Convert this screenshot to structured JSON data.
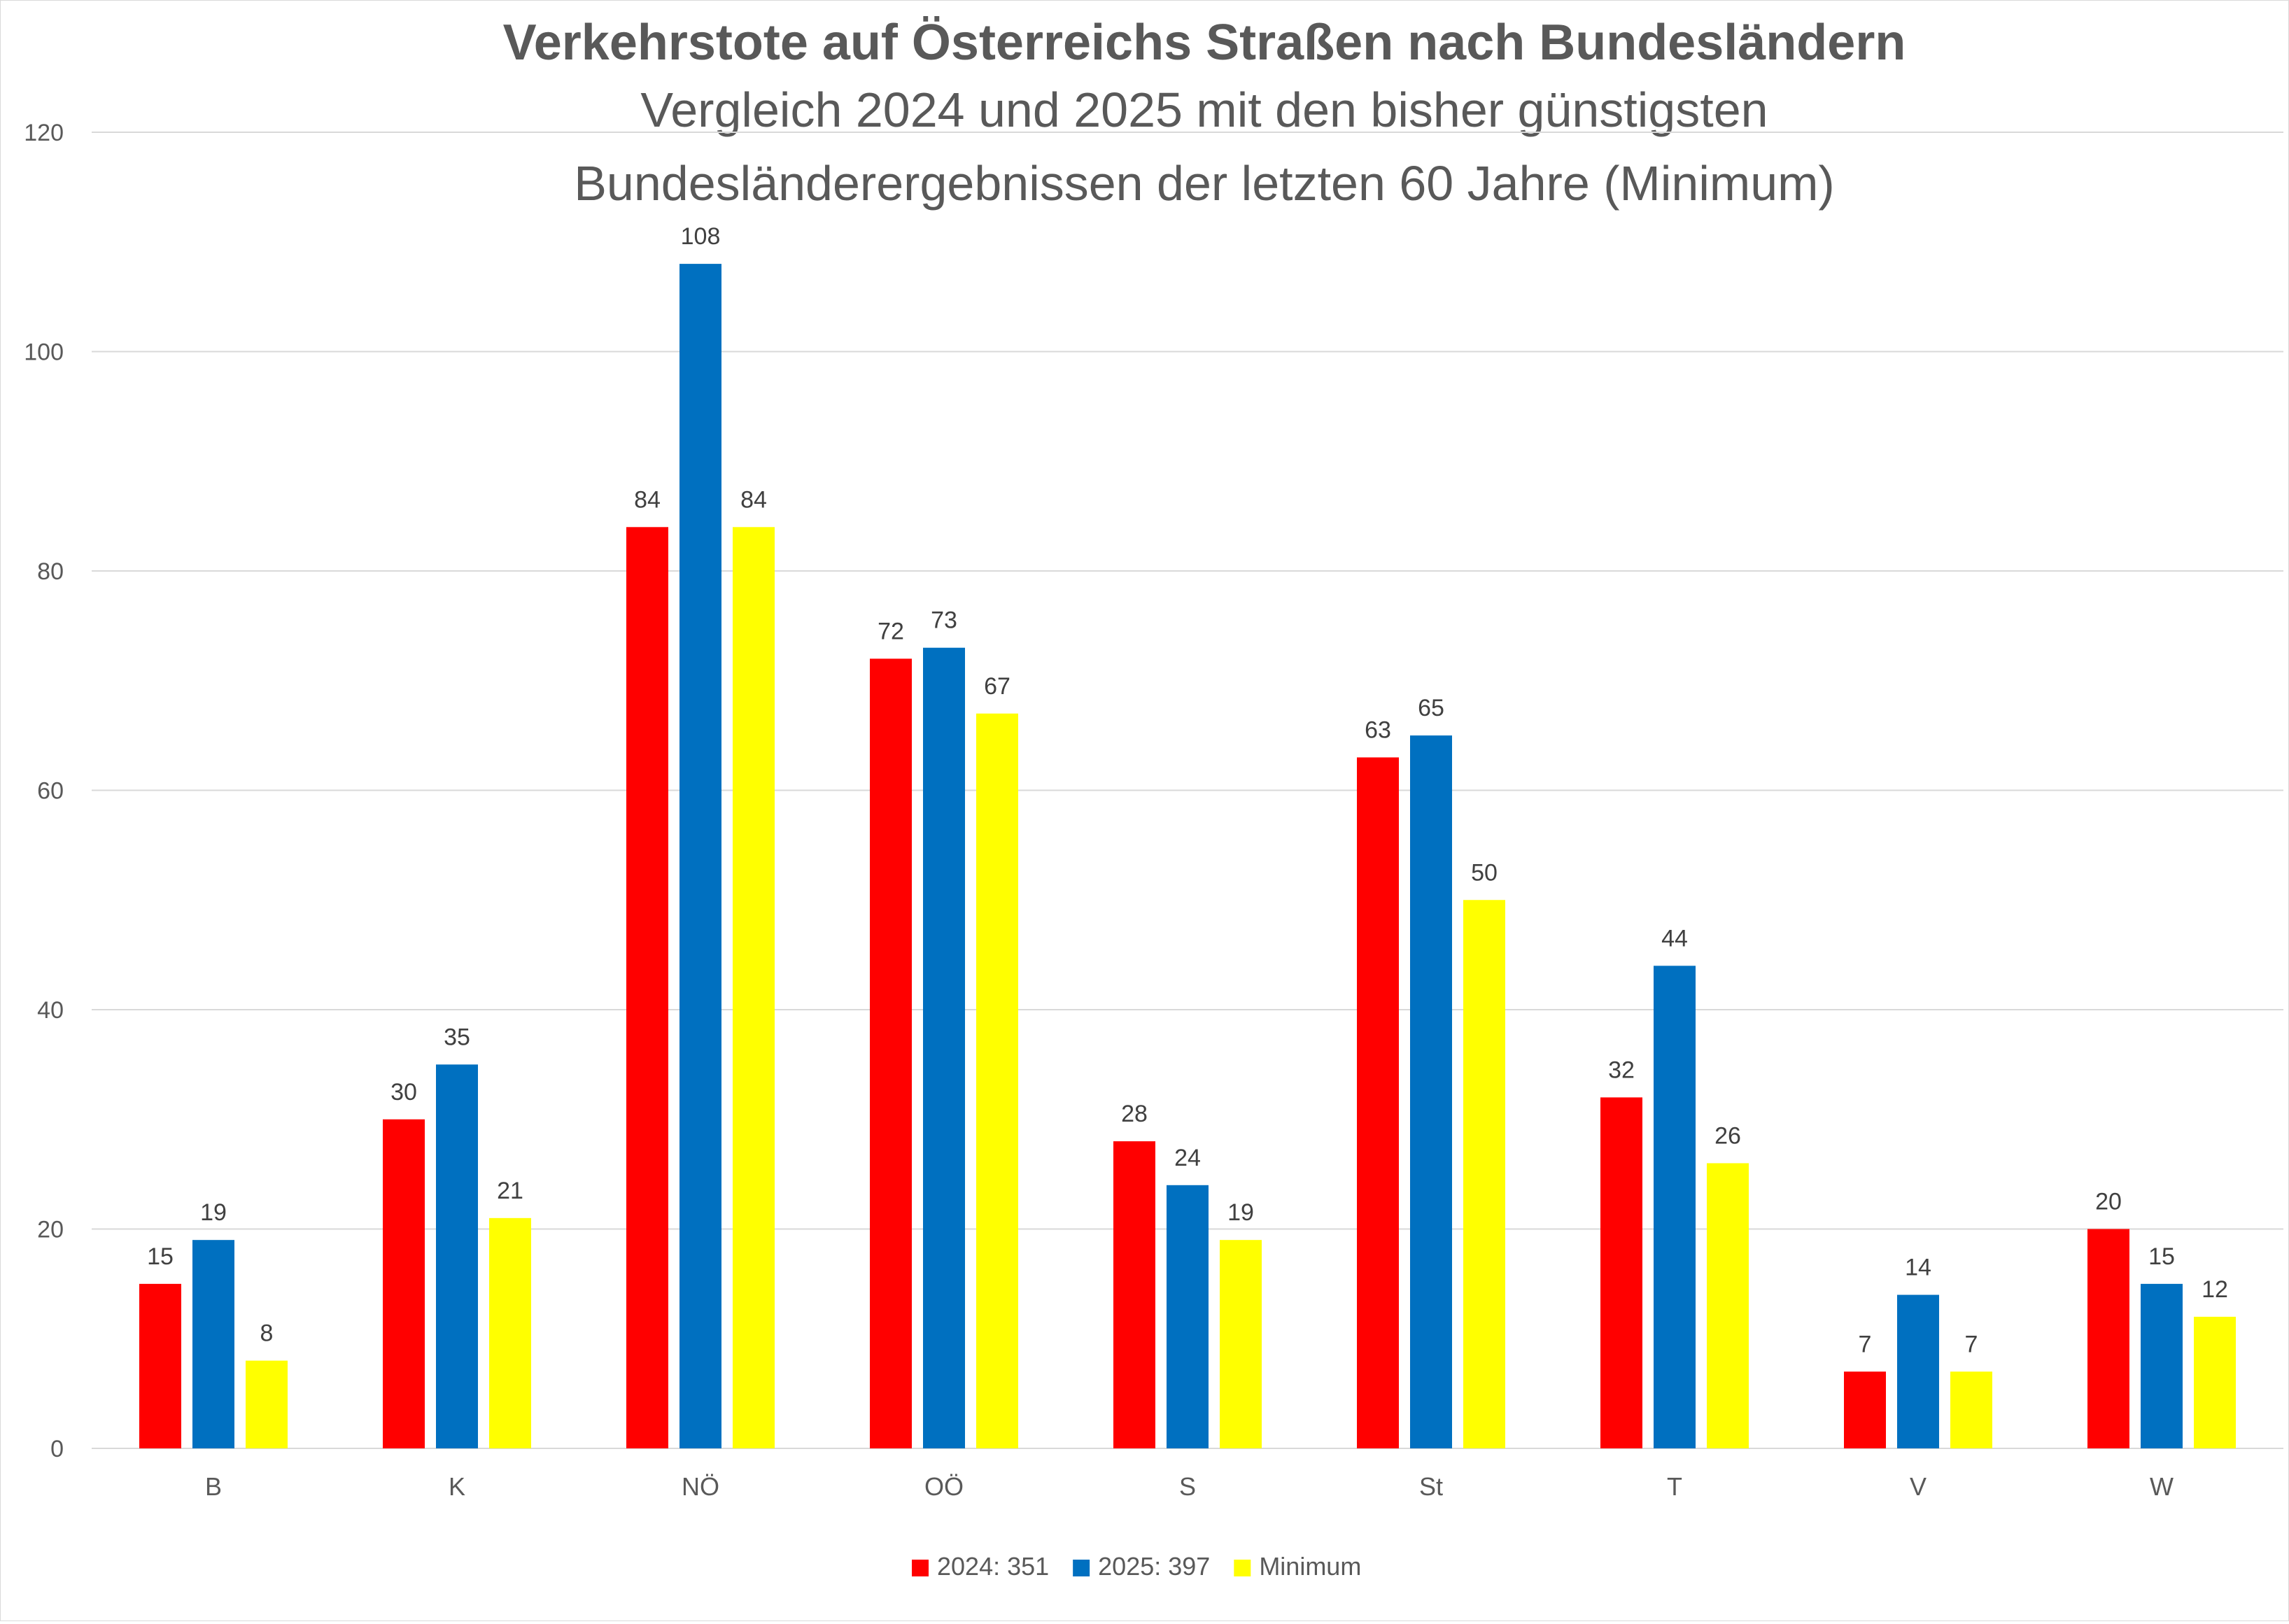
{
  "chart_data": {
    "type": "bar",
    "title": "Verkehrstote auf Österreichs Straßen nach Bundesländern",
    "subtitle_lines": [
      "Vergleich 2024 und 2025 mit den bisher günstigsten",
      "Bundesländerergebnissen der letzten 60 Jahre (Minimum)"
    ],
    "categories": [
      "B",
      "K",
      "NÖ",
      "OÖ",
      "S",
      "St",
      "T",
      "V",
      "W"
    ],
    "series": [
      {
        "name": "2024: 351",
        "color": "#ff0000",
        "values": [
          15,
          30,
          84,
          72,
          28,
          63,
          32,
          7,
          20
        ]
      },
      {
        "name": "2025: 397",
        "color": "#0070c0",
        "values": [
          19,
          35,
          108,
          73,
          24,
          65,
          44,
          14,
          15
        ]
      },
      {
        "name": "Minimum",
        "color": "#ffff00",
        "values": [
          8,
          21,
          84,
          67,
          19,
          50,
          26,
          7,
          12
        ]
      }
    ],
    "ylim": [
      0,
      120
    ],
    "yticks": [
      0,
      20,
      40,
      60,
      80,
      100,
      120
    ],
    "xlabel": "",
    "ylabel": "",
    "grid": true,
    "legend_position": "bottom",
    "data_labels": true
  }
}
